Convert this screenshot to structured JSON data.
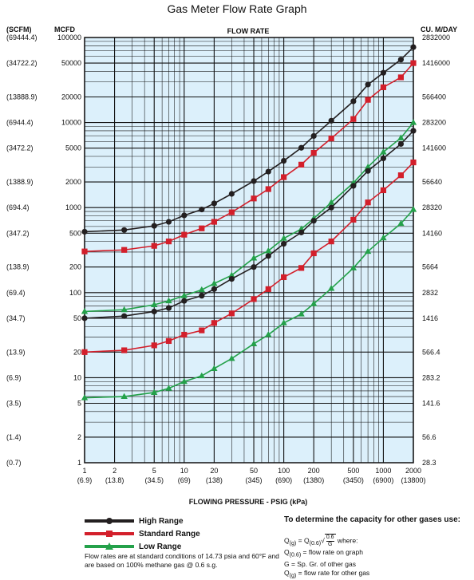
{
  "chart_data": {
    "type": "line",
    "title": "Gas Meter Flow Rate Graph",
    "subtitle": "FLOW RATE",
    "xlabel": "FLOWING PRESSURE - PSIG  (kPa)",
    "x_scale": "log",
    "y_scale": "log",
    "xlim": [
      1,
      2000
    ],
    "ylim": [
      1,
      100000
    ],
    "grid": true,
    "legend_position": "bottom-left",
    "axis_headers": {
      "left_outer": "(SCFM)",
      "left_inner": "MCFD",
      "right": "CU. M/DAY"
    },
    "x_ticks": [
      {
        "value": 1,
        "label": "1",
        "sub": "(6.9)"
      },
      {
        "value": 2,
        "label": "2",
        "sub": "(13.8)"
      },
      {
        "value": 5,
        "label": "5",
        "sub": "(34.5)"
      },
      {
        "value": 10,
        "label": "10",
        "sub": "(69)"
      },
      {
        "value": 20,
        "label": "20",
        "sub": "(138)"
      },
      {
        "value": 50,
        "label": "50",
        "sub": "(345)"
      },
      {
        "value": 100,
        "label": "100",
        "sub": "(690)"
      },
      {
        "value": 200,
        "label": "200",
        "sub": "(1380)"
      },
      {
        "value": 500,
        "label": "500",
        "sub": "(3450)"
      },
      {
        "value": 1000,
        "label": "1000",
        "sub": "(6900)"
      },
      {
        "value": 2000,
        "label": "2000",
        "sub": "(13800)"
      }
    ],
    "y_ticks": [
      {
        "value": 100000,
        "label": "100000",
        "scfm": "(69444.4)",
        "cum": "2832000"
      },
      {
        "value": 50000,
        "label": "50000",
        "scfm": "(34722.2)",
        "cum": "1416000"
      },
      {
        "value": 20000,
        "label": "20000",
        "scfm": "(13888.9)",
        "cum": "566400"
      },
      {
        "value": 10000,
        "label": "10000",
        "scfm": "(6944.4)",
        "cum": "283200"
      },
      {
        "value": 5000,
        "label": "5000",
        "scfm": "(3472.2)",
        "cum": "141600"
      },
      {
        "value": 2000,
        "label": "2000",
        "scfm": "(1388.9)",
        "cum": "56640"
      },
      {
        "value": 1000,
        "label": "1000",
        "scfm": "(694.4)",
        "cum": "28320"
      },
      {
        "value": 500,
        "label": "500",
        "scfm": "(347.2)",
        "cum": "14160"
      },
      {
        "value": 200,
        "label": "200",
        "scfm": "(138.9)",
        "cum": "5664"
      },
      {
        "value": 100,
        "label": "100",
        "scfm": "(69.4)",
        "cum": "2832"
      },
      {
        "value": 50,
        "label": "50",
        "scfm": "(34.7)",
        "cum": "1416"
      },
      {
        "value": 20,
        "label": "20",
        "scfm": "(13.9)",
        "cum": "566.4"
      },
      {
        "value": 10,
        "label": "10",
        "scfm": "(6.9)",
        "cum": "283.2"
      },
      {
        "value": 5,
        "label": "5",
        "scfm": "(3.5)",
        "cum": "141.6"
      },
      {
        "value": 2,
        "label": "2",
        "scfm": "(1.4)",
        "cum": "56.6"
      },
      {
        "value": 1,
        "label": "1",
        "scfm": "(0.7)",
        "cum": "28.3"
      }
    ],
    "x": [
      1,
      2.5,
      5,
      7,
      10,
      15,
      20,
      30,
      50,
      70,
      100,
      150,
      200,
      300,
      500,
      700,
      1000,
      1500,
      2000
    ],
    "series": [
      {
        "name": "High Range",
        "legend": true,
        "color": "#231f20",
        "marker": "circle",
        "values": [
          520,
          545,
          610,
          680,
          810,
          950,
          1120,
          1450,
          2050,
          2650,
          3550,
          5050,
          6950,
          10500,
          17800,
          28000,
          38500,
          55000,
          77000
        ]
      },
      {
        "name": "Standard Range",
        "legend": true,
        "color": "#d31f2b",
        "marker": "square",
        "values": [
          305,
          318,
          355,
          400,
          480,
          570,
          680,
          880,
          1280,
          1650,
          2280,
          3200,
          4400,
          6500,
          11000,
          18500,
          26000,
          34000,
          50000
        ]
      },
      {
        "name": "Low Range",
        "legend": true,
        "color": "#24a14a",
        "marker": "triangle",
        "values": [
          60,
          63,
          72,
          80,
          92,
          108,
          128,
          160,
          255,
          310,
          435,
          560,
          745,
          1150,
          1950,
          3000,
          4500,
          6600,
          10000
        ]
      },
      {
        "name": "High Range",
        "legend": false,
        "color": "#231f20",
        "marker": "circle",
        "values": [
          50,
          53,
          60,
          66,
          80,
          92,
          110,
          145,
          200,
          270,
          375,
          510,
          700,
          1000,
          1800,
          2700,
          3800,
          5600,
          8000
        ]
      },
      {
        "name": "Standard Range",
        "legend": false,
        "color": "#d31f2b",
        "marker": "square",
        "values": [
          20,
          21,
          24,
          27,
          32,
          36,
          44,
          57,
          84,
          110,
          152,
          195,
          290,
          400,
          720,
          1150,
          1600,
          2400,
          3400
        ]
      },
      {
        "name": "Low Range",
        "legend": false,
        "color": "#24a14a",
        "marker": "triangle",
        "values": [
          5.8,
          6.0,
          6.7,
          7.5,
          9.0,
          10.5,
          12.8,
          16.8,
          25,
          32,
          44,
          56,
          74,
          112,
          195,
          305,
          440,
          650,
          950
        ]
      }
    ]
  },
  "legend_labels": [
    "High Range",
    "Standard Range",
    "Low Range"
  ],
  "footnote": "Flow rates are at standard conditions of 14.73 psia and 60°F and are based on 100% methane gas @ 0.6 s.g.",
  "formula": {
    "title": "To determine the capacity for other gases use:",
    "eq_left": "Q",
    "eq_left_sub": "(g)",
    "eq_mid": " = Q",
    "eq_mid_sub": "(0.6)",
    "sqrt_num": "0.6",
    "sqrt_den": "G",
    "eq_tail": " where:",
    "line1_var": "Q",
    "line1_sub": "(0.6)",
    "line1_text": " = flow rate on graph",
    "line2_text": "G = Sp. Gr. of other gas",
    "line3_var": "Q",
    "line3_sub": "(g)",
    "line3_text": " = flow rate for other gas"
  }
}
